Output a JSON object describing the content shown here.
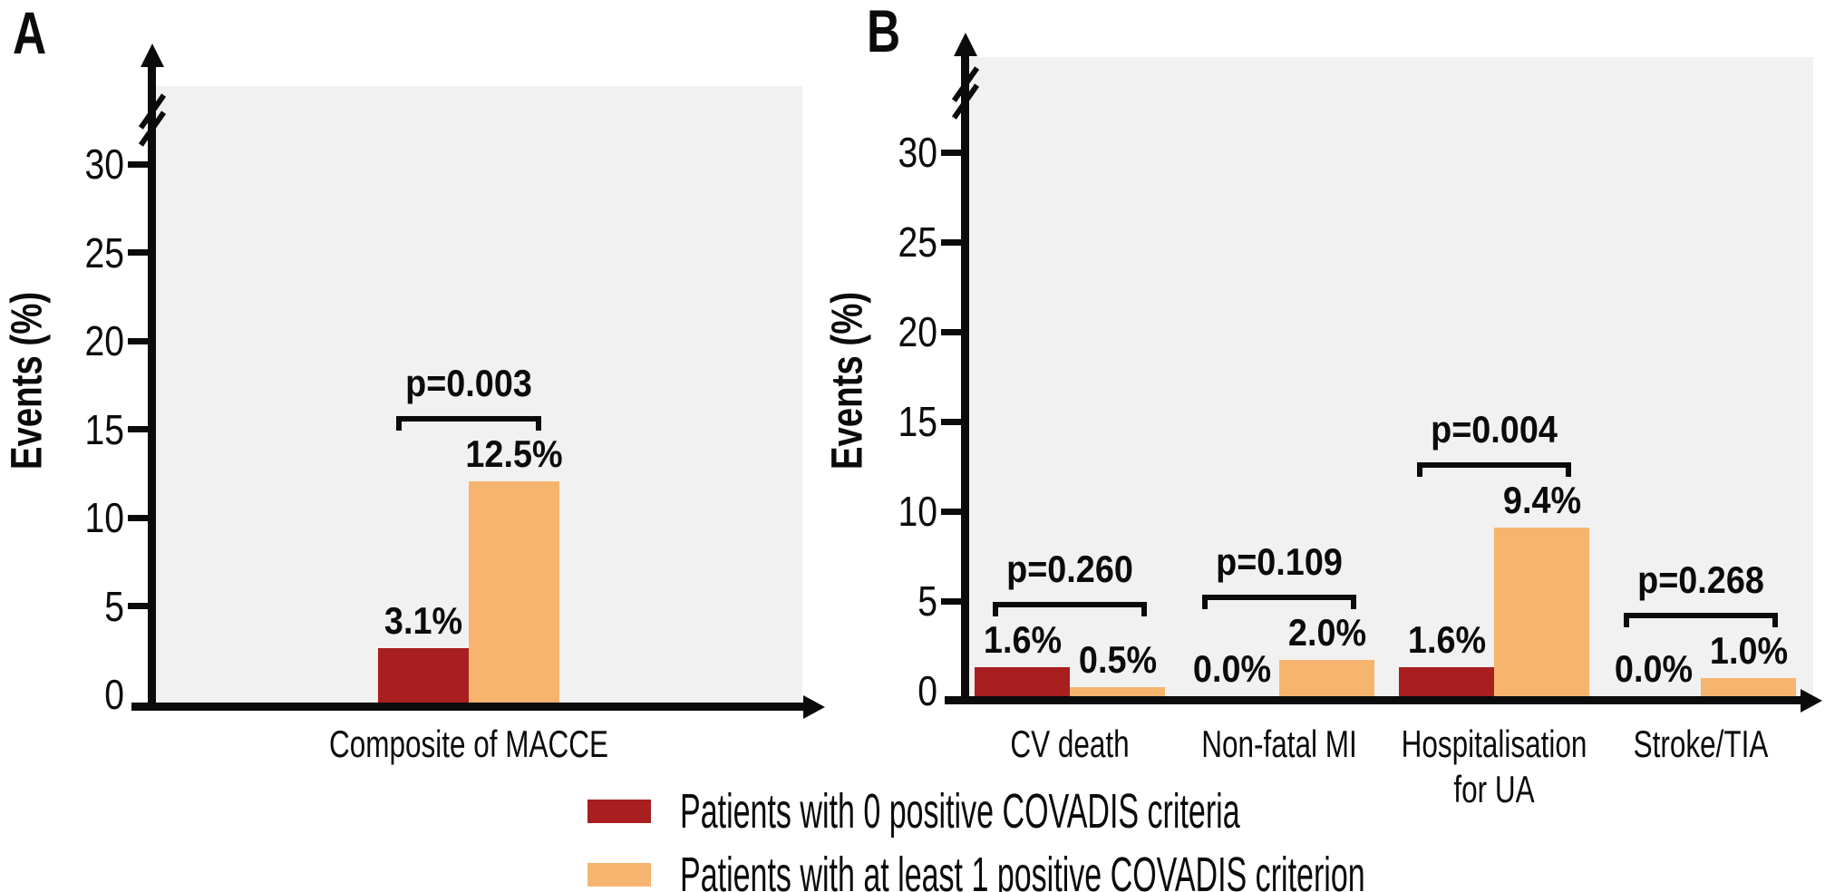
{
  "colors": {
    "plot_background": "#F1F1F1",
    "axis": "#0B0B0B",
    "text": "#0B0B0B",
    "bar_zero_criteria": "#A91E1E",
    "bar_one_plus_criterion": "#F7B46E"
  },
  "legend": {
    "items": [
      {
        "label": "Patients with 0 positive COVADIS criteria",
        "color": "#A91E1E"
      },
      {
        "label": "Patients with at least 1 positive COVADIS criterion",
        "color": "#F7B46E"
      }
    ]
  },
  "chart_data": [
    {
      "panel": "A",
      "type": "bar",
      "title": "",
      "ylabel": "Events (%)",
      "xlabel": "",
      "yticks": [
        0,
        5,
        10,
        15,
        20,
        25,
        30
      ],
      "ylim": [
        0,
        34
      ],
      "axis_break": true,
      "grid": false,
      "legend_position": "bottom",
      "categories": [
        [
          "Composite of MACCE"
        ]
      ],
      "series": [
        {
          "name": "Patients with 0 positive COVADIS criteria",
          "color": "#A91E1E",
          "values": [
            3.1
          ],
          "value_labels": [
            "3.1%"
          ]
        },
        {
          "name": "Patients with at least 1 positive COVADIS criterion",
          "color": "#F7B46E",
          "values": [
            12.5
          ],
          "value_labels": [
            "12.5%"
          ]
        }
      ],
      "p_value_labels": [
        "p=0.003"
      ]
    },
    {
      "panel": "B",
      "type": "bar",
      "title": "",
      "ylabel": "Events (%)",
      "xlabel": "",
      "yticks": [
        0,
        5,
        10,
        15,
        20,
        25,
        30
      ],
      "ylim": [
        0,
        34
      ],
      "axis_break": true,
      "grid": false,
      "legend_position": "bottom",
      "categories": [
        [
          "CV death"
        ],
        [
          "Non-fatal MI"
        ],
        [
          "Hospitalisation",
          "for UA"
        ],
        [
          "Stroke/TIA"
        ]
      ],
      "series": [
        {
          "name": "Patients with 0 positive COVADIS criteria",
          "color": "#A91E1E",
          "values": [
            1.6,
            0.0,
            1.6,
            0.0
          ],
          "value_labels": [
            "1.6%",
            "0.0%",
            "1.6%",
            "0.0%"
          ]
        },
        {
          "name": "Patients with at least 1 positive COVADIS criterion",
          "color": "#F7B46E",
          "values": [
            0.5,
            2.0,
            9.4,
            1.0
          ],
          "value_labels": [
            "0.5%",
            "2.0%",
            "9.4%",
            "1.0%"
          ]
        }
      ],
      "p_value_labels": [
        "p=0.260",
        "p=0.109",
        "p=0.004",
        "p=0.268"
      ]
    }
  ]
}
